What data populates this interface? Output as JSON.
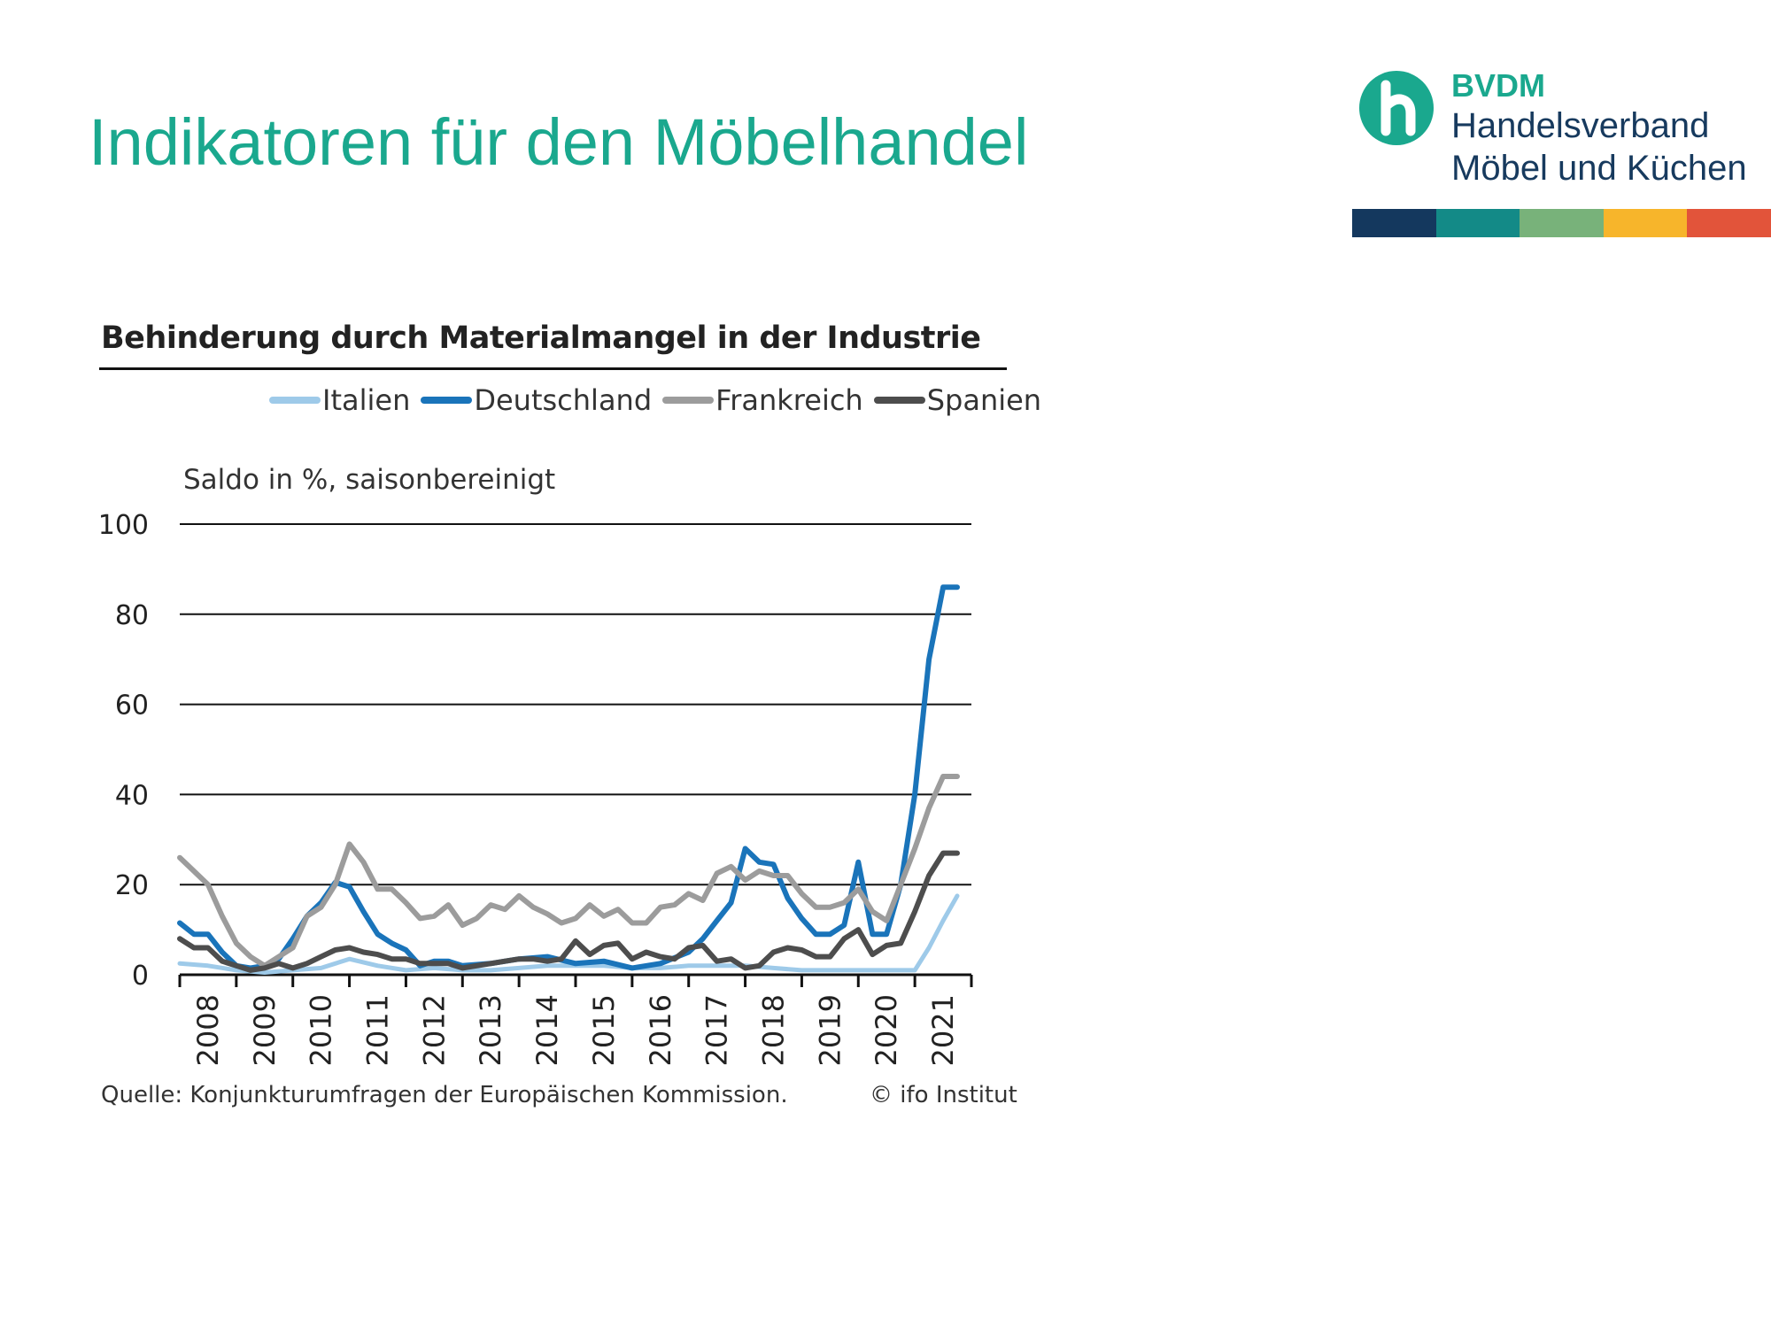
{
  "slide": {
    "title": "Indikatoren für den Möbelhandel"
  },
  "logo": {
    "org": "BVDM",
    "line1": "Handelsverband",
    "line2": "Möbel und Küchen",
    "bar_colors": [
      "#14385e",
      "#138a87",
      "#78b27a",
      "#f7b52b",
      "#e2543a"
    ],
    "mark_color": "#1aa88e"
  },
  "chart_data": {
    "type": "line",
    "title": "Behinderung durch Materialmangel in der Industrie",
    "ylabel": "Saldo in %, saisonbereinigt",
    "ylim": [
      0,
      100
    ],
    "yticks": [
      0,
      20,
      40,
      60,
      80,
      100
    ],
    "xlim": [
      2008,
      2022
    ],
    "categories": [
      "2008",
      "2009",
      "2010",
      "2011",
      "2012",
      "2013",
      "2014",
      "2015",
      "2016",
      "2017",
      "2018",
      "2019",
      "2020",
      "2021"
    ],
    "grid": "horizontal",
    "legend_position": "top",
    "source": "Quelle: Konjunkturumfragen der Europäischen Kommission.",
    "copyright": "© ifo Institut",
    "series": [
      {
        "name": "Italien",
        "color": "#9ecae9",
        "width": 5,
        "x": [
          2008.0,
          2008.5,
          2009.0,
          2009.5,
          2010.0,
          2010.5,
          2011.0,
          2011.5,
          2012.0,
          2012.5,
          2013.0,
          2013.5,
          2014.0,
          2014.5,
          2015.0,
          2015.5,
          2016.0,
          2016.5,
          2017.0,
          2017.5,
          2018.0,
          2018.5,
          2019.0,
          2019.5,
          2020.0,
          2020.5,
          2021.0,
          2021.25,
          2021.5,
          2021.75
        ],
        "y": [
          2.5,
          2.0,
          1.0,
          0.5,
          1.0,
          1.5,
          3.5,
          2.0,
          1.0,
          1.5,
          1.0,
          1.0,
          1.5,
          2.0,
          2.0,
          2.0,
          1.5,
          1.5,
          2.0,
          2.0,
          2.0,
          1.5,
          1.0,
          1.0,
          1.0,
          1.0,
          1.0,
          6.0,
          12.0,
          17.5
        ]
      },
      {
        "name": "Deutschland",
        "color": "#1a74ba",
        "width": 6,
        "x": [
          2008.0,
          2008.25,
          2008.5,
          2008.75,
          2009.0,
          2009.25,
          2009.5,
          2009.75,
          2010.0,
          2010.25,
          2010.5,
          2010.75,
          2011.0,
          2011.25,
          2011.5,
          2011.75,
          2012.0,
          2012.25,
          2012.5,
          2012.75,
          2013.0,
          2013.5,
          2014.0,
          2014.5,
          2015.0,
          2015.5,
          2016.0,
          2016.5,
          2017.0,
          2017.25,
          2017.5,
          2017.75,
          2018.0,
          2018.25,
          2018.5,
          2018.75,
          2019.0,
          2019.25,
          2019.5,
          2019.75,
          2020.0,
          2020.25,
          2020.5,
          2020.75,
          2021.0,
          2021.25,
          2021.5,
          2021.75
        ],
        "y": [
          11.5,
          9.0,
          9.0,
          5.0,
          2.0,
          1.5,
          2.0,
          3.5,
          8.0,
          13.0,
          16.0,
          20.5,
          19.5,
          14.0,
          9.0,
          7.0,
          5.5,
          2.0,
          3.0,
          3.0,
          2.0,
          2.5,
          3.5,
          4.0,
          2.5,
          3.0,
          1.5,
          2.5,
          5.0,
          8.0,
          12.0,
          16.0,
          28.0,
          25.0,
          24.5,
          17.0,
          12.5,
          9.0,
          9.0,
          11.0,
          25.0,
          9.0,
          9.0,
          20.0,
          40.0,
          70.0,
          86.0,
          86.0
        ]
      },
      {
        "name": "Frankreich",
        "color": "#9c9c9c",
        "width": 6,
        "x": [
          2008.0,
          2008.25,
          2008.5,
          2008.75,
          2009.0,
          2009.25,
          2009.5,
          2009.75,
          2010.0,
          2010.25,
          2010.5,
          2010.75,
          2011.0,
          2011.25,
          2011.5,
          2011.75,
          2012.0,
          2012.25,
          2012.5,
          2012.75,
          2013.0,
          2013.25,
          2013.5,
          2013.75,
          2014.0,
          2014.25,
          2014.5,
          2014.75,
          2015.0,
          2015.25,
          2015.5,
          2015.75,
          2016.0,
          2016.25,
          2016.5,
          2016.75,
          2017.0,
          2017.25,
          2017.5,
          2017.75,
          2018.0,
          2018.25,
          2018.5,
          2018.75,
          2019.0,
          2019.25,
          2019.5,
          2019.75,
          2020.0,
          2020.25,
          2020.5,
          2020.75,
          2021.0,
          2021.25,
          2021.5,
          2021.75
        ],
        "y": [
          26.0,
          23.0,
          20.0,
          13.0,
          7.0,
          4.0,
          2.0,
          4.0,
          6.0,
          13.0,
          15.0,
          20.0,
          29.0,
          25.0,
          19.0,
          19.0,
          16.0,
          12.5,
          13.0,
          15.5,
          11.0,
          12.5,
          15.5,
          14.5,
          17.5,
          15.0,
          13.5,
          11.5,
          12.5,
          15.5,
          13.0,
          14.5,
          11.5,
          11.5,
          15.0,
          15.5,
          18.0,
          16.5,
          22.5,
          24.0,
          21.0,
          23.0,
          22.0,
          22.0,
          18.0,
          15.0,
          15.0,
          16.0,
          19.0,
          14.0,
          12.0,
          20.0,
          28.0,
          37.0,
          44.0,
          44.0
        ]
      },
      {
        "name": "Spanien",
        "color": "#4d4d4d",
        "width": 6,
        "x": [
          2008.0,
          2008.25,
          2008.5,
          2008.75,
          2009.0,
          2009.25,
          2009.5,
          2009.75,
          2010.0,
          2010.25,
          2010.5,
          2010.75,
          2011.0,
          2011.25,
          2011.5,
          2011.75,
          2012.0,
          2012.25,
          2012.5,
          2012.75,
          2013.0,
          2013.25,
          2013.5,
          2013.75,
          2014.0,
          2014.25,
          2014.5,
          2014.75,
          2015.0,
          2015.25,
          2015.5,
          2015.75,
          2016.0,
          2016.25,
          2016.5,
          2016.75,
          2017.0,
          2017.25,
          2017.5,
          2017.75,
          2018.0,
          2018.25,
          2018.5,
          2018.75,
          2019.0,
          2019.25,
          2019.5,
          2019.75,
          2020.0,
          2020.25,
          2020.5,
          2020.75,
          2021.0,
          2021.25,
          2021.5,
          2021.75
        ],
        "y": [
          8.0,
          6.0,
          6.0,
          3.0,
          2.0,
          1.0,
          1.5,
          2.5,
          1.5,
          2.5,
          4.0,
          5.5,
          6.0,
          5.0,
          4.5,
          3.5,
          3.5,
          2.5,
          2.5,
          2.5,
          1.5,
          2.0,
          2.5,
          3.0,
          3.5,
          3.5,
          3.0,
          3.5,
          7.5,
          4.5,
          6.5,
          7.0,
          3.5,
          5.0,
          4.0,
          3.5,
          6.0,
          6.5,
          3.0,
          3.5,
          1.5,
          2.0,
          5.0,
          6.0,
          5.5,
          4.0,
          4.0,
          8.0,
          10.0,
          4.5,
          6.5,
          7.0,
          14.0,
          22.0,
          27.0,
          27.0
        ]
      }
    ]
  }
}
